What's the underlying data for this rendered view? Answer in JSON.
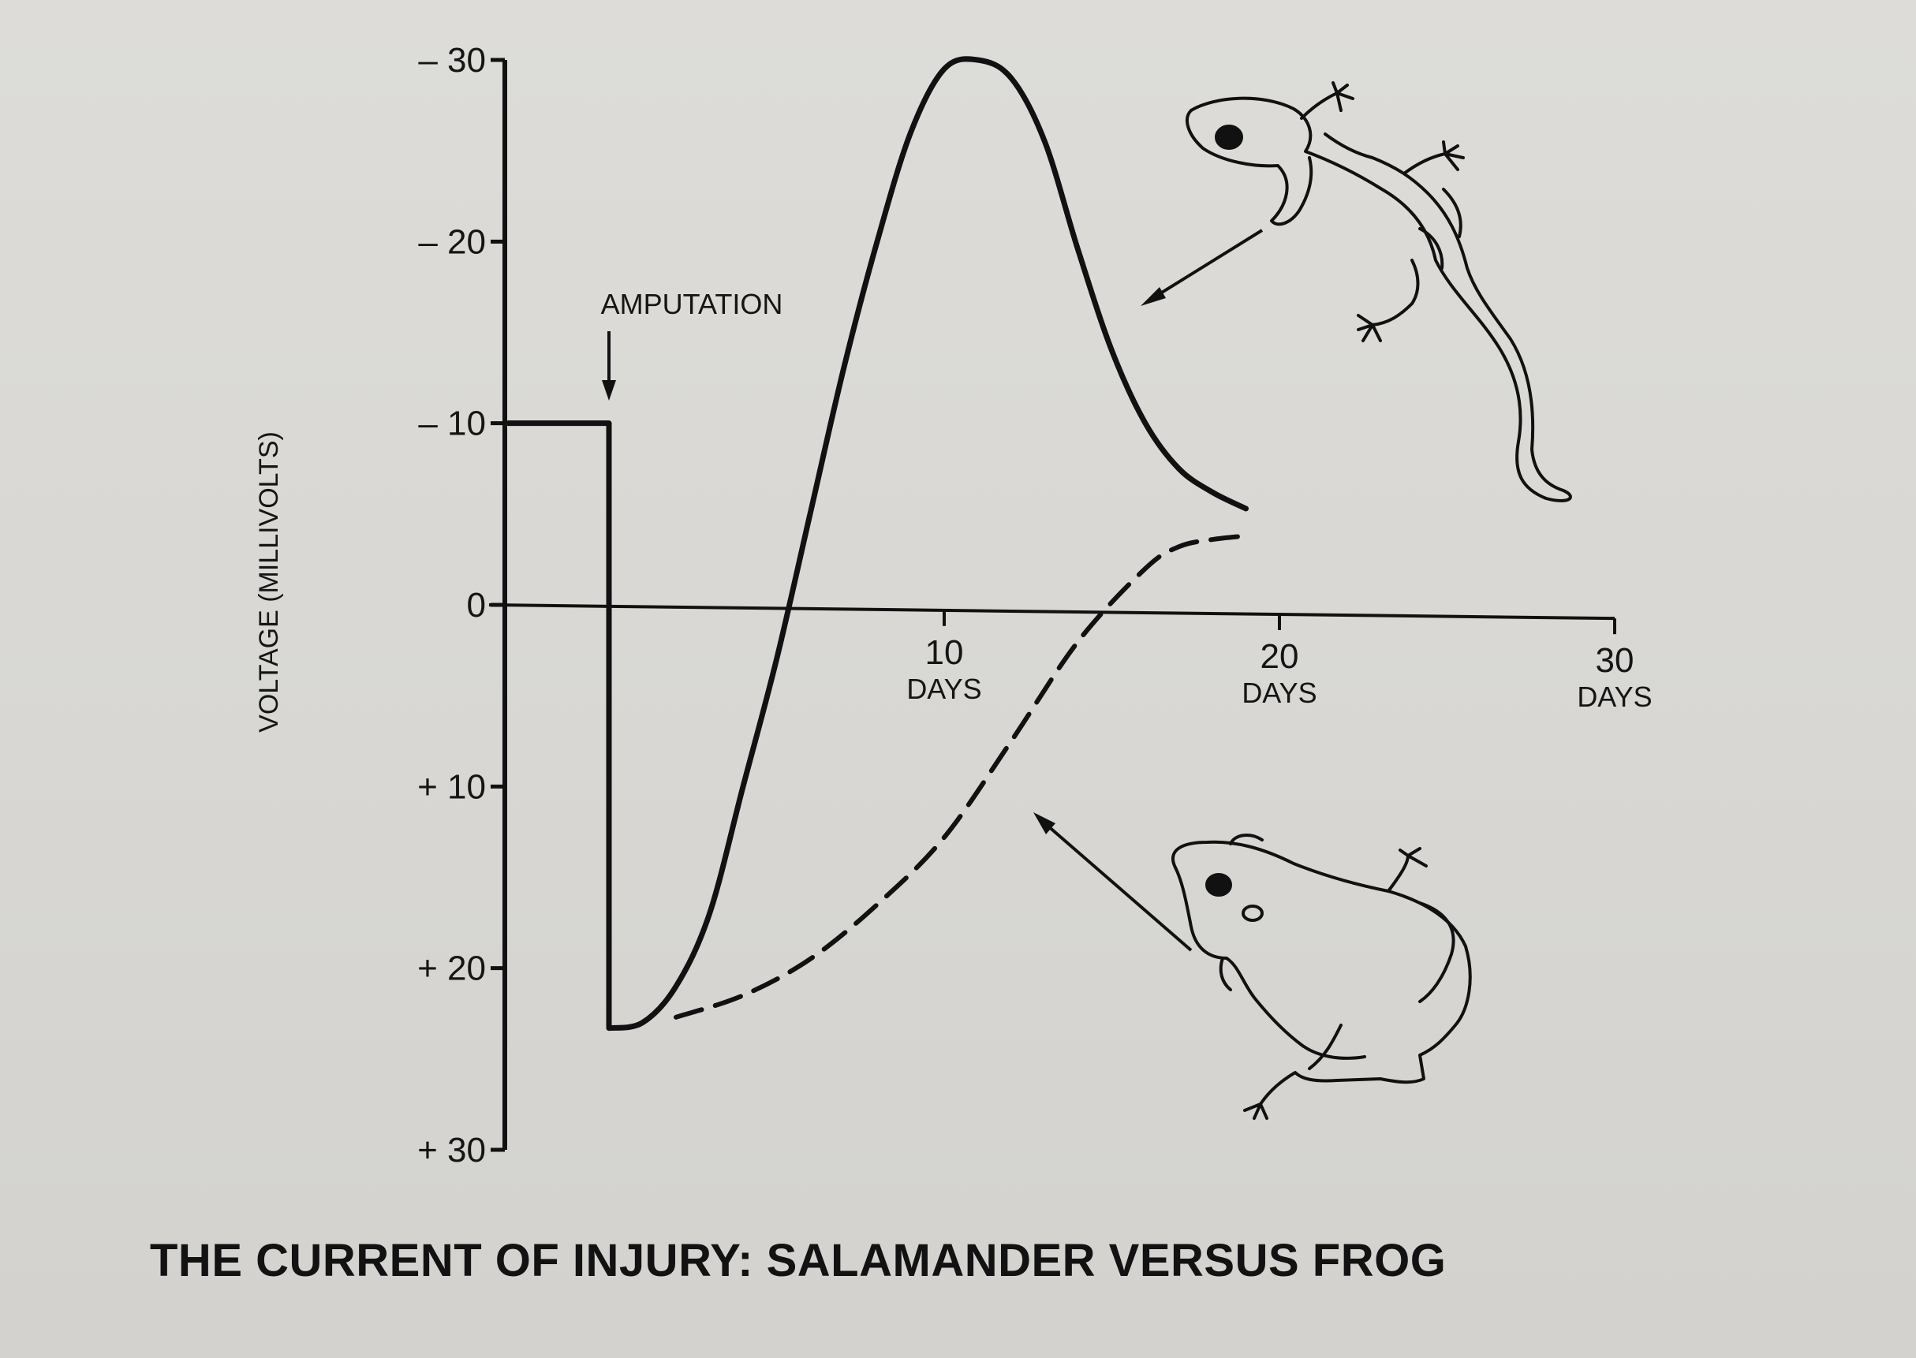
{
  "chart_data": {
    "type": "line",
    "title": "THE CURRENT OF INJURY: SALAMANDER VERSUS FROG",
    "ylabel": "VOLTAGE (MILLIVOLTS)",
    "xlabel": "",
    "y_axis_inverted": true,
    "ylim": [
      -30,
      30
    ],
    "xlim": [
      -3,
      30
    ],
    "y_ticks": [
      {
        "value": -30,
        "label": "– 30"
      },
      {
        "value": -20,
        "label": "– 20"
      },
      {
        "value": -10,
        "label": "– 10"
      },
      {
        "value": 0,
        "label": "0"
      },
      {
        "value": 10,
        "label": "+ 10"
      },
      {
        "value": 20,
        "label": "+ 20"
      },
      {
        "value": 30,
        "label": "+ 30"
      }
    ],
    "x_ticks": [
      {
        "value": 10,
        "number": "10",
        "unit": "DAYS"
      },
      {
        "value": 20,
        "number": "20",
        "unit": "DAYS"
      },
      {
        "value": 30,
        "number": "30",
        "unit": "DAYS"
      }
    ],
    "grid": false,
    "legend": "none",
    "annotation": {
      "text": "AMPUTATION",
      "x": 0
    },
    "series": [
      {
        "style": "solid",
        "color": "#111111",
        "points": [
          [
            -3,
            -10
          ],
          [
            0,
            -10
          ],
          [
            0,
            23.3
          ],
          [
            1,
            23
          ],
          [
            2,
            21
          ],
          [
            3,
            17
          ],
          [
            4,
            10
          ],
          [
            5,
            3
          ],
          [
            6,
            -5
          ],
          [
            7,
            -13
          ],
          [
            8,
            -20
          ],
          [
            9,
            -26
          ],
          [
            10,
            -29.5
          ],
          [
            11,
            -30
          ],
          [
            12,
            -29
          ],
          [
            13,
            -25.5
          ],
          [
            14,
            -19.5
          ],
          [
            15,
            -14
          ],
          [
            16,
            -10
          ],
          [
            17,
            -7.5
          ],
          [
            18,
            -6.2
          ],
          [
            19,
            -5.3
          ]
        ]
      },
      {
        "style": "dashed",
        "color": "#111111",
        "points": [
          [
            2,
            22.7
          ],
          [
            4,
            21.5
          ],
          [
            6,
            19.5
          ],
          [
            8,
            16.5
          ],
          [
            10,
            12.8
          ],
          [
            12,
            7.5
          ],
          [
            14,
            2
          ],
          [
            16,
            -2
          ],
          [
            17,
            -3.2
          ],
          [
            18,
            -3.6
          ],
          [
            19,
            -3.8
          ]
        ]
      }
    ],
    "illustrations": [
      {
        "icon": "salamander-icon",
        "points_to_series": 0
      },
      {
        "icon": "frog-icon",
        "points_to_series": 1
      }
    ]
  }
}
